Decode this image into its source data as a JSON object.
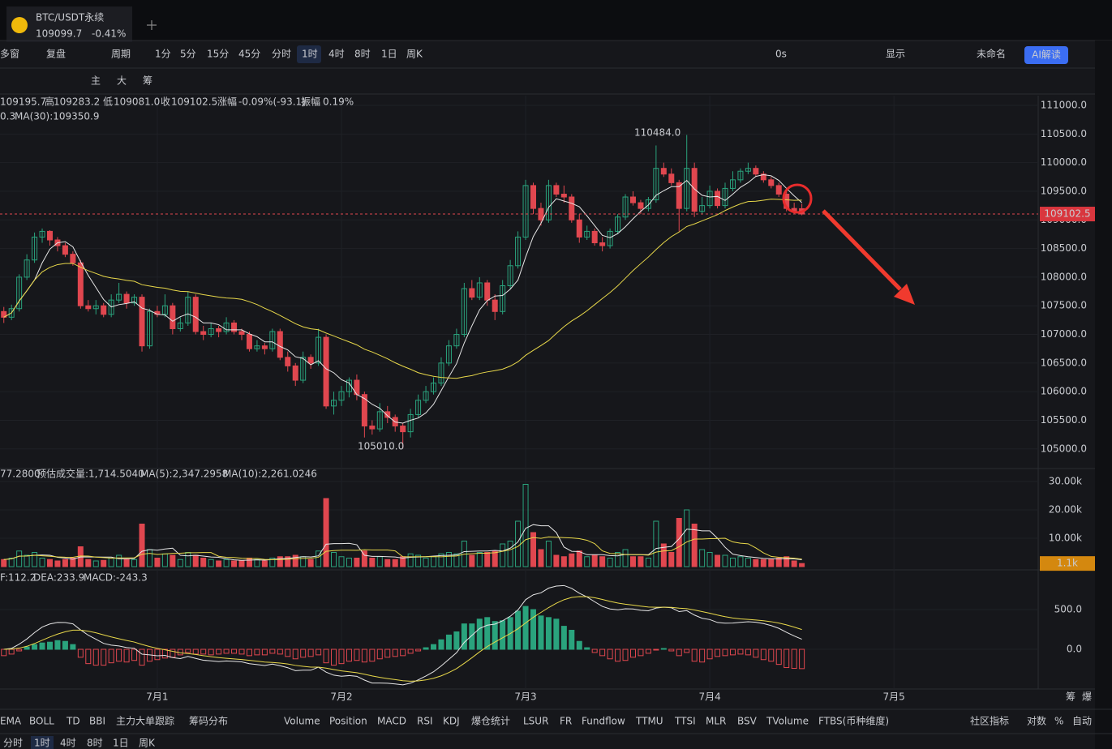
{
  "tab": {
    "symbol": "BTC/USDT永续",
    "price": "109099.7",
    "change": "-0.41%"
  },
  "toolbar": {
    "multi_window": "多窗",
    "replay": "复盘",
    "period": "周期",
    "intervals": [
      "1分",
      "5分",
      "15分",
      "45分",
      "分时",
      "1时",
      "4时",
      "8时",
      "1日",
      "周K"
    ],
    "delay": "0s",
    "display": "显示",
    "layout_name": "未命名",
    "ai": "AI解读",
    "main_tools": [
      "主",
      "大",
      "筹"
    ]
  },
  "chart_data": {
    "type": "candlestick",
    "up_color": "#2aa37d",
    "down_color": "#e0474f",
    "info": [
      {
        "label": null,
        "value": "109195.7"
      },
      {
        "label": "高",
        "value": "109283.2"
      },
      {
        "label": "低",
        "value": "109081.0"
      },
      {
        "label": "收",
        "value": "109102.5"
      },
      {
        "label": "涨幅",
        "value": "-0.09%(-93.1)"
      },
      {
        "label": "振幅",
        "value": "0.19%"
      }
    ],
    "ma_legend": [
      "0.3",
      "MA(30):109350.9"
    ],
    "candles": [
      [
        107400,
        107480,
        107200,
        107300
      ],
      [
        107300,
        107520,
        107250,
        107450
      ],
      [
        107450,
        108050,
        107400,
        108000
      ],
      [
        108000,
        108400,
        107950,
        108300
      ],
      [
        108300,
        108780,
        108250,
        108700
      ],
      [
        108700,
        108850,
        108600,
        108800
      ],
      [
        108800,
        108820,
        108550,
        108650
      ],
      [
        108650,
        108700,
        108450,
        108550
      ],
      [
        108550,
        108600,
        108350,
        108400
      ],
      [
        108400,
        108450,
        108200,
        108250
      ],
      [
        108250,
        108300,
        107450,
        107500
      ],
      [
        107500,
        107600,
        107400,
        107450
      ],
      [
        107450,
        107600,
        107350,
        107500
      ],
      [
        107500,
        107550,
        107300,
        107350
      ],
      [
        107350,
        107700,
        107300,
        107600
      ],
      [
        107600,
        107900,
        107550,
        107700
      ],
      [
        107700,
        107750,
        107450,
        107550
      ],
      [
        107550,
        107700,
        107500,
        107650
      ],
      [
        107650,
        107700,
        106700,
        106800
      ],
      [
        106800,
        107450,
        106750,
        107400
      ],
      [
        107400,
        107500,
        107300,
        107350
      ],
      [
        107350,
        107700,
        107300,
        107500
      ],
      [
        107500,
        107550,
        107000,
        107100
      ],
      [
        107100,
        107300,
        107050,
        107200
      ],
      [
        107200,
        107750,
        107150,
        107650
      ],
      [
        107650,
        107700,
        107000,
        107050
      ],
      [
        107050,
        107150,
        106900,
        107000
      ],
      [
        107000,
        107200,
        106950,
        107100
      ],
      [
        107100,
        107150,
        106950,
        107050
      ],
      [
        107050,
        107300,
        107000,
        107200
      ],
      [
        107200,
        107250,
        107000,
        107050
      ],
      [
        107050,
        107100,
        106900,
        107000
      ],
      [
        107000,
        107050,
        106700,
        106750
      ],
      [
        106750,
        106900,
        106700,
        106800
      ],
      [
        106800,
        106850,
        106650,
        106750
      ],
      [
        106750,
        107100,
        106700,
        107050
      ],
      [
        107050,
        107100,
        106550,
        106600
      ],
      [
        106600,
        106700,
        106350,
        106450
      ],
      [
        106450,
        106500,
        106100,
        106200
      ],
      [
        106200,
        106700,
        106150,
        106600
      ],
      [
        106600,
        106650,
        106400,
        106500
      ],
      [
        106500,
        107100,
        106450,
        106950
      ],
      [
        106950,
        107000,
        105700,
        105750
      ],
      [
        105750,
        106000,
        105600,
        105850
      ],
      [
        105850,
        106100,
        105750,
        106000
      ],
      [
        106000,
        106250,
        105900,
        106200
      ],
      [
        106200,
        106300,
        105850,
        105950
      ],
      [
        105950,
        106000,
        105200,
        105400
      ],
      [
        105400,
        105500,
        105250,
        105350
      ],
      [
        105350,
        105800,
        105300,
        105650
      ],
      [
        105650,
        105750,
        105450,
        105550
      ],
      [
        105550,
        105600,
        105300,
        105400
      ],
      [
        105400,
        105450,
        105010,
        105300
      ],
      [
        105300,
        105700,
        105200,
        105600
      ],
      [
        105600,
        105950,
        105550,
        105850
      ],
      [
        105850,
        106100,
        105800,
        106000
      ],
      [
        106000,
        106250,
        105950,
        106150
      ],
      [
        106150,
        106600,
        106100,
        106500
      ],
      [
        106500,
        106900,
        106450,
        106800
      ],
      [
        106800,
        107100,
        106750,
        107000
      ],
      [
        107000,
        107900,
        106950,
        107800
      ],
      [
        107800,
        107950,
        107600,
        107650
      ],
      [
        107650,
        108000,
        107600,
        107900
      ],
      [
        107900,
        107950,
        107500,
        107600
      ],
      [
        107600,
        107700,
        107250,
        107400
      ],
      [
        107400,
        107950,
        107350,
        107850
      ],
      [
        107850,
        108300,
        107800,
        108200
      ],
      [
        108200,
        108800,
        108150,
        108700
      ],
      [
        108700,
        109700,
        108650,
        109600
      ],
      [
        109600,
        109650,
        109100,
        109200
      ],
      [
        109200,
        109300,
        108900,
        109000
      ],
      [
        109000,
        109700,
        108950,
        109600
      ],
      [
        109600,
        109650,
        109400,
        109450
      ],
      [
        109450,
        109600,
        109300,
        109400
      ],
      [
        109400,
        109450,
        108950,
        109000
      ],
      [
        109000,
        109100,
        108600,
        108700
      ],
      [
        108700,
        108900,
        108650,
        108800
      ],
      [
        108800,
        108850,
        108550,
        108600
      ],
      [
        108600,
        108700,
        108450,
        108550
      ],
      [
        108550,
        108850,
        108500,
        108800
      ],
      [
        108800,
        109100,
        108750,
        109050
      ],
      [
        109050,
        109450,
        109000,
        109400
      ],
      [
        109400,
        109500,
        109250,
        109300
      ],
      [
        109300,
        109350,
        109100,
        109200
      ],
      [
        109200,
        109400,
        109150,
        109350
      ],
      [
        109350,
        110300,
        109300,
        109900
      ],
      [
        109900,
        110000,
        109750,
        109800
      ],
      [
        109800,
        109900,
        109600,
        109650
      ],
      [
        109650,
        109700,
        108800,
        109200
      ],
      [
        109200,
        110484,
        109150,
        109900
      ],
      [
        109900,
        110000,
        109050,
        109150
      ],
      [
        109150,
        109400,
        109100,
        109250
      ],
      [
        109250,
        109600,
        109200,
        109500
      ],
      [
        109500,
        109550,
        109200,
        109250
      ],
      [
        109250,
        109650,
        109200,
        109550
      ],
      [
        109550,
        109850,
        109500,
        109700
      ],
      [
        109700,
        109900,
        109650,
        109850
      ],
      [
        109850,
        110000,
        109800,
        109900
      ],
      [
        109900,
        109950,
        109750,
        109800
      ],
      [
        109800,
        109850,
        109650,
        109700
      ],
      [
        109700,
        109750,
        109550,
        109600
      ],
      [
        109600,
        109650,
        109400,
        109450
      ],
      [
        109450,
        109500,
        109150,
        109200
      ],
      [
        109200,
        109300,
        109100,
        109150
      ],
      [
        109195.7,
        109283.2,
        109081.0,
        109102.5
      ]
    ],
    "ylim": [
      104700,
      111170
    ],
    "xlim": [
      -0.5,
      134.8
    ],
    "yticks": [
      {
        "value": 105000,
        "label": "105000.0"
      },
      {
        "value": 105500,
        "label": "105500.0"
      },
      {
        "value": 106000,
        "label": "106000.0"
      },
      {
        "value": 106500,
        "label": "106500.0"
      },
      {
        "value": 107000,
        "label": "107000.0"
      },
      {
        "value": 107500,
        "label": "107500.0"
      },
      {
        "value": 108000,
        "label": "108000.0"
      },
      {
        "value": 108500,
        "label": "108500.0"
      },
      {
        "value": 109000,
        "label": "109000.0"
      },
      {
        "value": 109500,
        "label": "109500.0"
      },
      {
        "value": 110000,
        "label": "110000.0"
      },
      {
        "value": 110500,
        "label": "110500.0"
      },
      {
        "value": 111000,
        "label": "111000.0"
      }
    ],
    "xticks": [
      {
        "value": 20,
        "label": "7月1"
      },
      {
        "value": 44,
        "label": "7月2"
      },
      {
        "value": 68,
        "label": "7月3"
      },
      {
        "value": 92,
        "label": "7月4"
      },
      {
        "value": 116,
        "label": "7月5"
      }
    ],
    "high_label": "110484.0",
    "low_label": "105010.0",
    "last_price": {
      "value": 109102.5,
      "label": "109102.5"
    },
    "volume": {
      "legend": [
        "77.2800",
        "预估成交量:1,714.5040",
        "MA(5):2,347.2958",
        "MA(10):2,261.0246"
      ],
      "values": [
        2500,
        3000,
        5500,
        4000,
        5000,
        3000,
        2500,
        2000,
        2500,
        3000,
        7000,
        2500,
        2000,
        2200,
        3000,
        4000,
        2500,
        2500,
        15000,
        6000,
        3000,
        4500,
        4000,
        2500,
        5000,
        4000,
        3000,
        2500,
        2000,
        2500,
        2000,
        2000,
        3000,
        2500,
        2000,
        3000,
        3500,
        3500,
        4000,
        3500,
        2500,
        5500,
        24000,
        5000,
        3500,
        3000,
        3000,
        5500,
        3000,
        3500,
        2500,
        2500,
        3500,
        4500,
        4000,
        3000,
        3500,
        4500,
        5000,
        4500,
        9000,
        4000,
        5000,
        5000,
        5500,
        8000,
        9000,
        16000,
        29000,
        12000,
        6000,
        9000,
        4000,
        3500,
        4500,
        5500,
        3500,
        4000,
        3500,
        3000,
        5000,
        6000,
        3500,
        3500,
        3000,
        16000,
        8000,
        5000,
        17000,
        20000,
        15000,
        6000,
        5000,
        4000,
        4000,
        3000,
        3500,
        3000,
        2500,
        2500,
        2500,
        3000,
        3500,
        2000,
        1100
      ],
      "ylim": [
        0,
        34000
      ],
      "yticks": [
        {
          "value": 10000,
          "label": "10.00k"
        },
        {
          "value": 20000,
          "label": "20.00k"
        },
        {
          "value": 30000,
          "label": "30.00k"
        }
      ],
      "last": {
        "value": 1100,
        "label": "1.1k"
      }
    },
    "macd": {
      "legend": [
        "F:112.2",
        "DEA:233.9",
        "MACD:-243.3"
      ],
      "histogram": [
        -80,
        -60,
        -20,
        30,
        60,
        80,
        90,
        110,
        100,
        60,
        -100,
        -180,
        -200,
        -200,
        -170,
        -150,
        -160,
        -140,
        -200,
        -150,
        -130,
        -110,
        -100,
        -70,
        -40,
        -60,
        -60,
        -70,
        -60,
        -50,
        -50,
        -60,
        -80,
        -70,
        -70,
        -50,
        -60,
        -90,
        -120,
        -100,
        -90,
        -70,
        -170,
        -200,
        -180,
        -150,
        -140,
        -160,
        -150,
        -120,
        -100,
        -90,
        -80,
        -50,
        -20,
        20,
        60,
        120,
        180,
        220,
        320,
        320,
        380,
        400,
        350,
        360,
        400,
        480,
        540,
        500,
        420,
        400,
        380,
        290,
        240,
        100,
        20,
        -40,
        -80,
        -120,
        -150,
        -140,
        -100,
        -80,
        -50,
        -10,
        10,
        -20,
        -80,
        -40,
        -150,
        -160,
        -120,
        -90,
        -80,
        -70,
        -60,
        -70,
        -100,
        -130,
        -150,
        -190,
        -230,
        -240,
        -243.3
      ],
      "ylim": [
        -500,
        980
      ],
      "yticks": [
        {
          "value": 0,
          "label": "0.0"
        },
        {
          "value": 500,
          "label": "500.0"
        }
      ]
    },
    "corner": [
      "筹",
      "爆"
    ]
  },
  "indicator_tabs": {
    "main": [
      "EMA",
      "BOLL",
      "TD",
      "BBI",
      "主力大单跟踪",
      "筹码分布"
    ],
    "sub": [
      "Volume",
      "Position",
      "MACD",
      "RSI",
      "KDJ",
      "爆仓统计",
      "LSUR",
      "FR",
      "Fundflow",
      "TTMU",
      "TTSI",
      "MLR",
      "BSV",
      "TVolume",
      "FTBS(币种维度)"
    ],
    "right": [
      "社区指标",
      "对数",
      "%",
      "自动"
    ]
  },
  "bottom_intervals": [
    "分时",
    "1时",
    "4时",
    "8时",
    "1日",
    "周K"
  ]
}
